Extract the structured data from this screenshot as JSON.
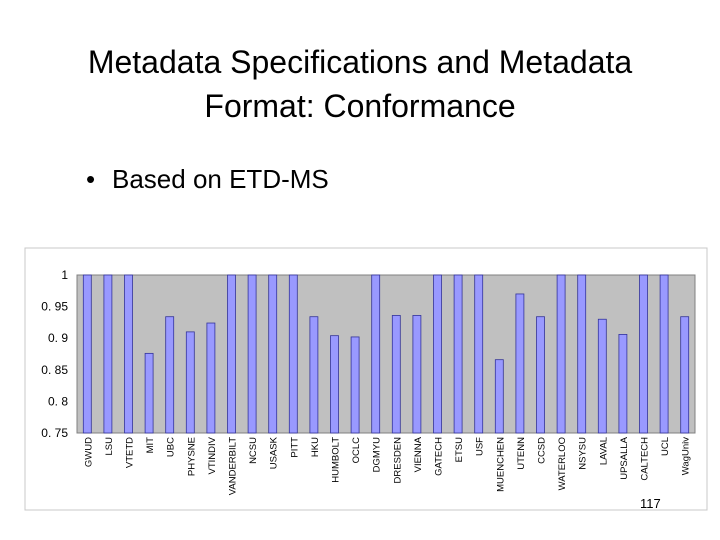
{
  "slide": {
    "title_line1": "Metadata Specifications and Metadata",
    "title_line2": "Format: Conformance",
    "bullet_char": "•",
    "bullet_text": "Based on ETD-MS",
    "page_number": "117"
  },
  "chart_data": {
    "type": "bar",
    "title": "",
    "xlabel": "",
    "ylabel": "",
    "ylim": [
      0.75,
      1
    ],
    "yticks": [
      "0. 75",
      "0. 8",
      "0. 85",
      "0. 9",
      "0. 95",
      "1"
    ],
    "ytick_values": [
      0.75,
      0.8,
      0.85,
      0.9,
      0.95,
      1
    ],
    "grid": false,
    "legend": "none",
    "colors": {
      "bar": "#9999ff",
      "bar_edge": "#333399",
      "plot_bg": "#c0c0c0"
    },
    "categories": [
      "GWUD",
      "LSU",
      "VTETD",
      "MIT",
      "UBC",
      "PHYSNE",
      "VTINDIV",
      "VANDERBILT",
      "NCSU",
      "USASK",
      "PITT",
      "HKU",
      "HUMBOLT",
      "OCLC",
      "DGMYU",
      "DRESDEN",
      "VIENNA",
      "GATECH",
      "ETSU",
      "USF",
      "MUENCHEN",
      "UTENN",
      "CCSD",
      "WATERLOO",
      "NSYSU",
      "LAVAL",
      "UPSALLA",
      "CALTECH",
      "UCL",
      "WagUniv"
    ],
    "values": [
      1,
      1,
      1,
      0.876,
      0.934,
      0.91,
      0.924,
      1,
      1,
      1,
      1,
      0.934,
      0.904,
      0.902,
      1,
      0.936,
      0.936,
      1,
      1,
      1,
      0.866,
      0.97,
      0.934,
      1,
      1,
      0.93,
      0.906,
      1,
      1,
      0.934
    ]
  }
}
